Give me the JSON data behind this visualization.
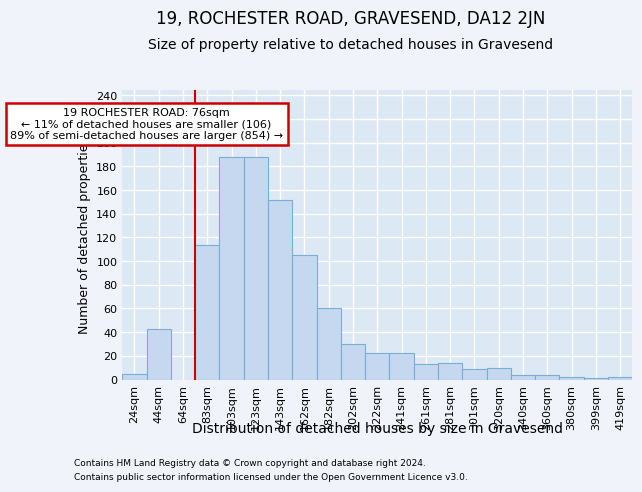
{
  "title": "19, ROCHESTER ROAD, GRAVESEND, DA12 2JN",
  "subtitle": "Size of property relative to detached houses in Gravesend",
  "xlabel": "Distribution of detached houses by size in Gravesend",
  "ylabel": "Number of detached properties",
  "footer1": "Contains HM Land Registry data © Crown copyright and database right 2024.",
  "footer2": "Contains public sector information licensed under the Open Government Licence v3.0.",
  "bar_labels": [
    "24sqm",
    "44sqm",
    "64sqm",
    "83sqm",
    "103sqm",
    "123sqm",
    "143sqm",
    "162sqm",
    "182sqm",
    "202sqm",
    "222sqm",
    "241sqm",
    "261sqm",
    "281sqm",
    "301sqm",
    "320sqm",
    "340sqm",
    "360sqm",
    "380sqm",
    "399sqm",
    "419sqm"
  ],
  "bar_values": [
    5,
    43,
    0,
    114,
    188,
    188,
    152,
    105,
    60,
    30,
    22,
    22,
    13,
    14,
    9,
    10,
    4,
    4,
    2,
    1,
    2
  ],
  "bar_color": "#c5d8f0",
  "bar_edge_color": "#7aadd4",
  "vline_x": 2.5,
  "annotation_title": "19 ROCHESTER ROAD: 76sqm",
  "annotation_line1": "← 11% of detached houses are smaller (106)",
  "annotation_line2": "89% of semi-detached houses are larger (854) →",
  "annotation_box_color": "#ffffff",
  "annotation_box_edge": "#cc0000",
  "vline_color": "#cc0000",
  "ylim": [
    0,
    245
  ],
  "yticks": [
    0,
    20,
    40,
    60,
    80,
    100,
    120,
    140,
    160,
    180,
    200,
    220,
    240
  ],
  "bg_color": "#dde8f5",
  "grid_color": "#ffffff",
  "fig_bg": "#f0f4fa",
  "title_fontsize": 12,
  "subtitle_fontsize": 10,
  "ylabel_fontsize": 9,
  "xlabel_fontsize": 10,
  "tick_fontsize": 8
}
